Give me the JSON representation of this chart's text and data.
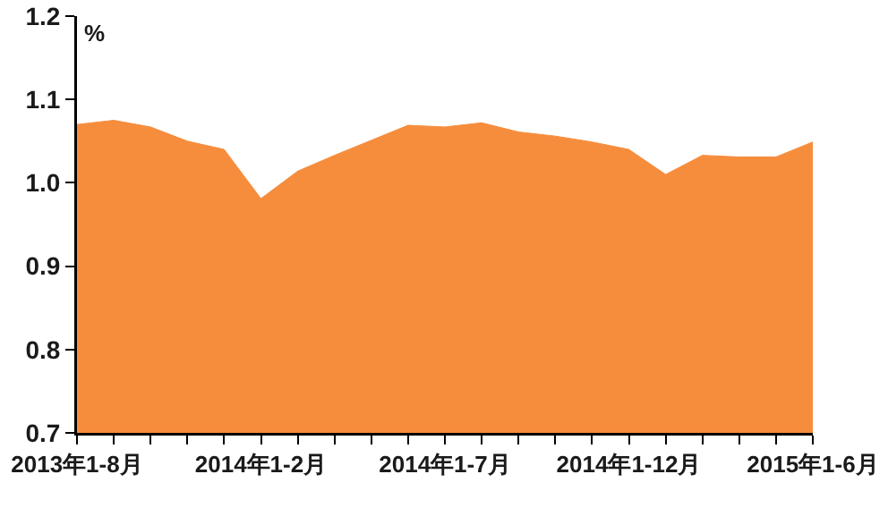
{
  "chart_data": {
    "type": "area",
    "ylabel": "%",
    "categories": [
      "2013年1-8月",
      null,
      null,
      null,
      null,
      "2014年1-2月",
      null,
      null,
      null,
      null,
      "2014年1-7月",
      null,
      null,
      null,
      null,
      "2014年1-12月",
      null,
      null,
      null,
      null,
      "2015年1-6月"
    ],
    "series": [
      {
        "color": "#f68d3d",
        "values": [
          1.07,
          1.075,
          1.067,
          1.05,
          1.04,
          0.981,
          1.014,
          1.033,
          1.051,
          1.069,
          1.067,
          1.072,
          1.061,
          1.056,
          1.049,
          1.04,
          1.01,
          1.033,
          1.031,
          1.031,
          1.049
        ]
      }
    ],
    "ylim": [
      0.7,
      1.2
    ],
    "yticks": [
      0.7,
      0.8,
      0.9,
      {
        "value": 1,
        "label": "1.0"
      },
      1.1,
      1.2
    ],
    "grid": false
  }
}
